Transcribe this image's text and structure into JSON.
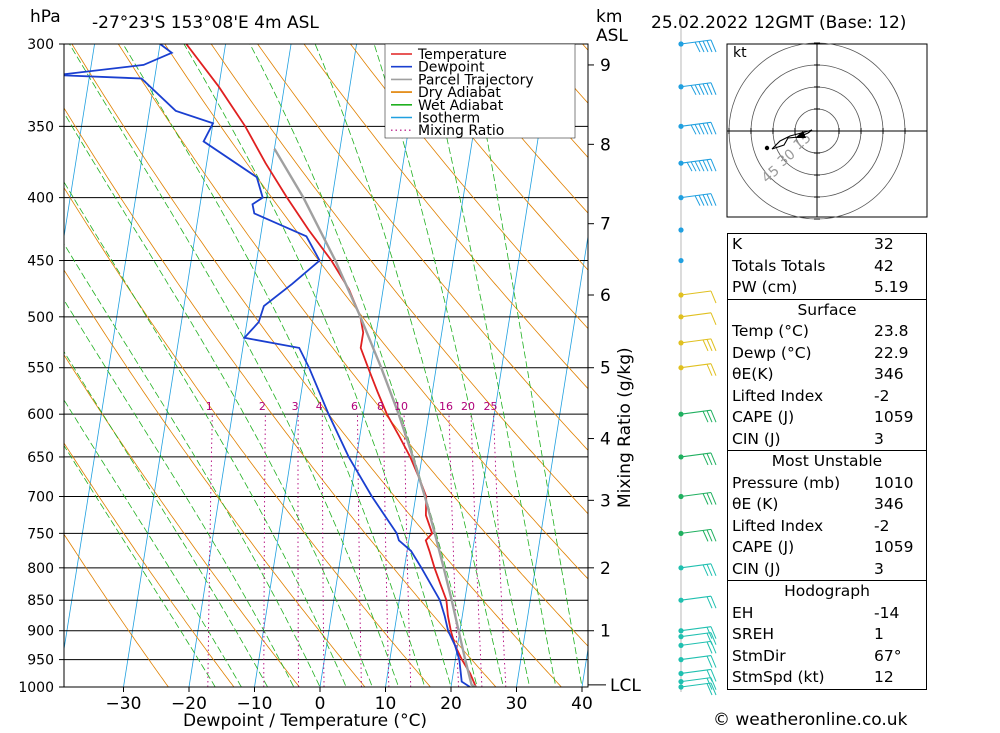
{
  "header": {
    "pressure_unit": "hPa",
    "location": "-27°23'S  153°08'E  4m  ASL",
    "km_label": "km",
    "asl_label": "ASL",
    "datetime": "25.02.2022  12GMT  (Base: 12)"
  },
  "chart_data": {
    "type": "line",
    "title": "",
    "xlabel": "Dewpoint / Temperature (°C)",
    "y2label": "Mixing Ratio (g/kg)",
    "x_ticks": [
      -30,
      -20,
      -10,
      0,
      10,
      20,
      30,
      40
    ],
    "xlim": [
      -40,
      40
    ],
    "pressure_levels": [
      300,
      350,
      400,
      450,
      500,
      550,
      600,
      650,
      700,
      750,
      800,
      850,
      900,
      950,
      1000
    ],
    "ylim": [
      1000,
      300
    ],
    "y_scale": "log",
    "km_ticks": [
      {
        "label": "1",
        "p": 900
      },
      {
        "label": "2",
        "p": 800
      },
      {
        "label": "3",
        "p": 705
      },
      {
        "label": "4",
        "p": 628
      },
      {
        "label": "5",
        "p": 550
      },
      {
        "label": "6",
        "p": 480
      },
      {
        "label": "7",
        "p": 420
      },
      {
        "label": "8",
        "p": 362
      },
      {
        "label": "9",
        "p": 312
      }
    ],
    "lcl_label": "LCL",
    "lcl_p": 996,
    "mixing_ratio_labels": [
      "1",
      "2",
      "3",
      "4",
      "6",
      "8",
      "10",
      "16",
      "20",
      "25"
    ],
    "mixing_ratio_values": [
      1,
      2,
      3,
      4,
      6,
      8,
      10,
      16,
      20,
      25
    ],
    "mixing_ratio_label_p": 600,
    "legend": [
      {
        "name": "Temperature",
        "color": "#e02020",
        "style": "solid"
      },
      {
        "name": "Dewpoint",
        "color": "#1a3fd0",
        "style": "solid"
      },
      {
        "name": "Parcel Trajectory",
        "color": "#a0a0a0",
        "style": "solid"
      },
      {
        "name": "Dry Adiabat",
        "color": "#e08000",
        "style": "solid"
      },
      {
        "name": "Wet Adiabat",
        "color": "#20b020",
        "style": "solid"
      },
      {
        "name": "Isotherm",
        "color": "#20a0e0",
        "style": "solid"
      },
      {
        "name": "Mixing Ratio",
        "color": "#b0007a",
        "style": "dotted"
      }
    ],
    "series": [
      {
        "name": "Temperature",
        "color": "#e02020",
        "points": [
          [
            1000,
            23.8
          ],
          [
            975,
            22.6
          ],
          [
            950,
            21.0
          ],
          [
            925,
            19.6
          ],
          [
            900,
            18.6
          ],
          [
            875,
            17.8
          ],
          [
            850,
            17.2
          ],
          [
            825,
            15.9
          ],
          [
            800,
            14.6
          ],
          [
            775,
            13.4
          ],
          [
            760,
            12.6
          ],
          [
            750,
            13.4
          ],
          [
            725,
            12.0
          ],
          [
            700,
            11.6
          ],
          [
            675,
            10.0
          ],
          [
            650,
            8.2
          ],
          [
            625,
            6.0
          ],
          [
            600,
            3.6
          ],
          [
            575,
            1.6
          ],
          [
            550,
            -0.4
          ],
          [
            530,
            -2.0
          ],
          [
            515,
            -2.0
          ],
          [
            500,
            -2.8
          ],
          [
            475,
            -5.2
          ],
          [
            450,
            -8.6
          ],
          [
            425,
            -12.8
          ],
          [
            400,
            -16.9
          ],
          [
            375,
            -21.0
          ],
          [
            350,
            -25.0
          ],
          [
            325,
            -30.0
          ],
          [
            300,
            -36.0
          ]
        ]
      },
      {
        "name": "Dewpoint",
        "color": "#1a3fd0",
        "points": [
          [
            1000,
            22.9
          ],
          [
            990,
            21.5
          ],
          [
            950,
            20.6
          ],
          [
            925,
            19.6
          ],
          [
            900,
            18.2
          ],
          [
            875,
            17.3
          ],
          [
            850,
            16.2
          ],
          [
            800,
            12.6
          ],
          [
            775,
            10.6
          ],
          [
            760,
            8.5
          ],
          [
            750,
            8.0
          ],
          [
            700,
            3.3
          ],
          [
            650,
            -1.2
          ],
          [
            600,
            -5.3
          ],
          [
            550,
            -9.4
          ],
          [
            530,
            -11.4
          ],
          [
            520,
            -20.0
          ],
          [
            505,
            -18.2
          ],
          [
            490,
            -17.8
          ],
          [
            470,
            -14.0
          ],
          [
            450,
            -10.4
          ],
          [
            430,
            -13.0
          ],
          [
            412,
            -21.5
          ],
          [
            405,
            -22.0
          ],
          [
            400,
            -20.6
          ],
          [
            385,
            -22.0
          ],
          [
            360,
            -31.0
          ],
          [
            348,
            -30.0
          ],
          [
            340,
            -36.0
          ],
          [
            320,
            -42.0
          ],
          [
            318,
            -55.0
          ],
          [
            312,
            -42.0
          ],
          [
            305,
            -38.0
          ],
          [
            300,
            -40.0
          ]
        ]
      },
      {
        "name": "Parcel Trajectory",
        "color": "#a0a0a0",
        "points": [
          [
            1000,
            23.8
          ],
          [
            996,
            23.1
          ],
          [
            950,
            21.5
          ],
          [
            900,
            19.8
          ],
          [
            850,
            18.0
          ],
          [
            800,
            16.0
          ],
          [
            750,
            13.8
          ],
          [
            700,
            11.4
          ],
          [
            650,
            8.6
          ],
          [
            600,
            5.4
          ],
          [
            550,
            1.6
          ],
          [
            500,
            -2.8
          ],
          [
            450,
            -8.0
          ],
          [
            400,
            -14.4
          ],
          [
            365,
            -20.0
          ]
        ]
      }
    ],
    "wind_profile": [
      {
        "p": 1000,
        "spd": 10
      },
      {
        "p": 990,
        "spd": 10
      },
      {
        "p": 975,
        "spd": 10
      },
      {
        "p": 950,
        "spd": 10
      },
      {
        "p": 925,
        "spd": 10
      },
      {
        "p": 910,
        "spd": 10
      },
      {
        "p": 900,
        "spd": 10
      },
      {
        "p": 850,
        "spd": 10
      },
      {
        "p": 800,
        "spd": 15
      },
      {
        "p": 750,
        "spd": 15
      },
      {
        "p": 700,
        "spd": 15
      },
      {
        "p": 650,
        "spd": 15
      },
      {
        "p": 600,
        "spd": 15
      },
      {
        "p": 550,
        "spd": 10
      },
      {
        "p": 525,
        "spd": 15
      },
      {
        "p": 500,
        "spd": 5
      },
      {
        "p": 480,
        "spd": 5
      },
      {
        "p": 450,
        "spd": 0
      },
      {
        "p": 425,
        "spd": 0
      },
      {
        "p": 400,
        "spd": 25
      },
      {
        "p": 375,
        "spd": 35
      },
      {
        "p": 350,
        "spd": 30
      },
      {
        "p": 325,
        "spd": 30
      },
      {
        "p": 300,
        "spd": 25
      }
    ]
  },
  "hodograph": {
    "unit": "kt",
    "ring_labels": [
      "15",
      "30",
      "45"
    ]
  },
  "indices": {
    "top": [
      {
        "label": "K",
        "value": "32"
      },
      {
        "label": "Totals Totals",
        "value": "42"
      },
      {
        "label": "PW (cm)",
        "value": "5.19"
      }
    ],
    "surface": {
      "title": "Surface",
      "rows": [
        {
          "label": "Temp (°C)",
          "value": "23.8"
        },
        {
          "label": "Dewp (°C)",
          "value": "22.9"
        },
        {
          "label": "θE(K)",
          "value": "346"
        },
        {
          "label": "Lifted Index",
          "value": "-2"
        },
        {
          "label": "CAPE (J)",
          "value": "1059"
        },
        {
          "label": "CIN (J)",
          "value": "3"
        }
      ]
    },
    "most_unstable": {
      "title": "Most Unstable",
      "rows": [
        {
          "label": "Pressure (mb)",
          "value": "1010"
        },
        {
          "label": "θE (K)",
          "value": "346"
        },
        {
          "label": "Lifted Index",
          "value": "-2"
        },
        {
          "label": "CAPE (J)",
          "value": "1059"
        },
        {
          "label": "CIN (J)",
          "value": "3"
        }
      ]
    },
    "hodograph": {
      "title": "Hodograph",
      "rows": [
        {
          "label": "EH",
          "value": "-14"
        },
        {
          "label": "SREH",
          "value": "1"
        },
        {
          "label": "StmDir",
          "value": "67°"
        },
        {
          "label": "StmSpd (kt)",
          "value": "12"
        }
      ]
    }
  },
  "credit": "© weatheronline.co.uk"
}
